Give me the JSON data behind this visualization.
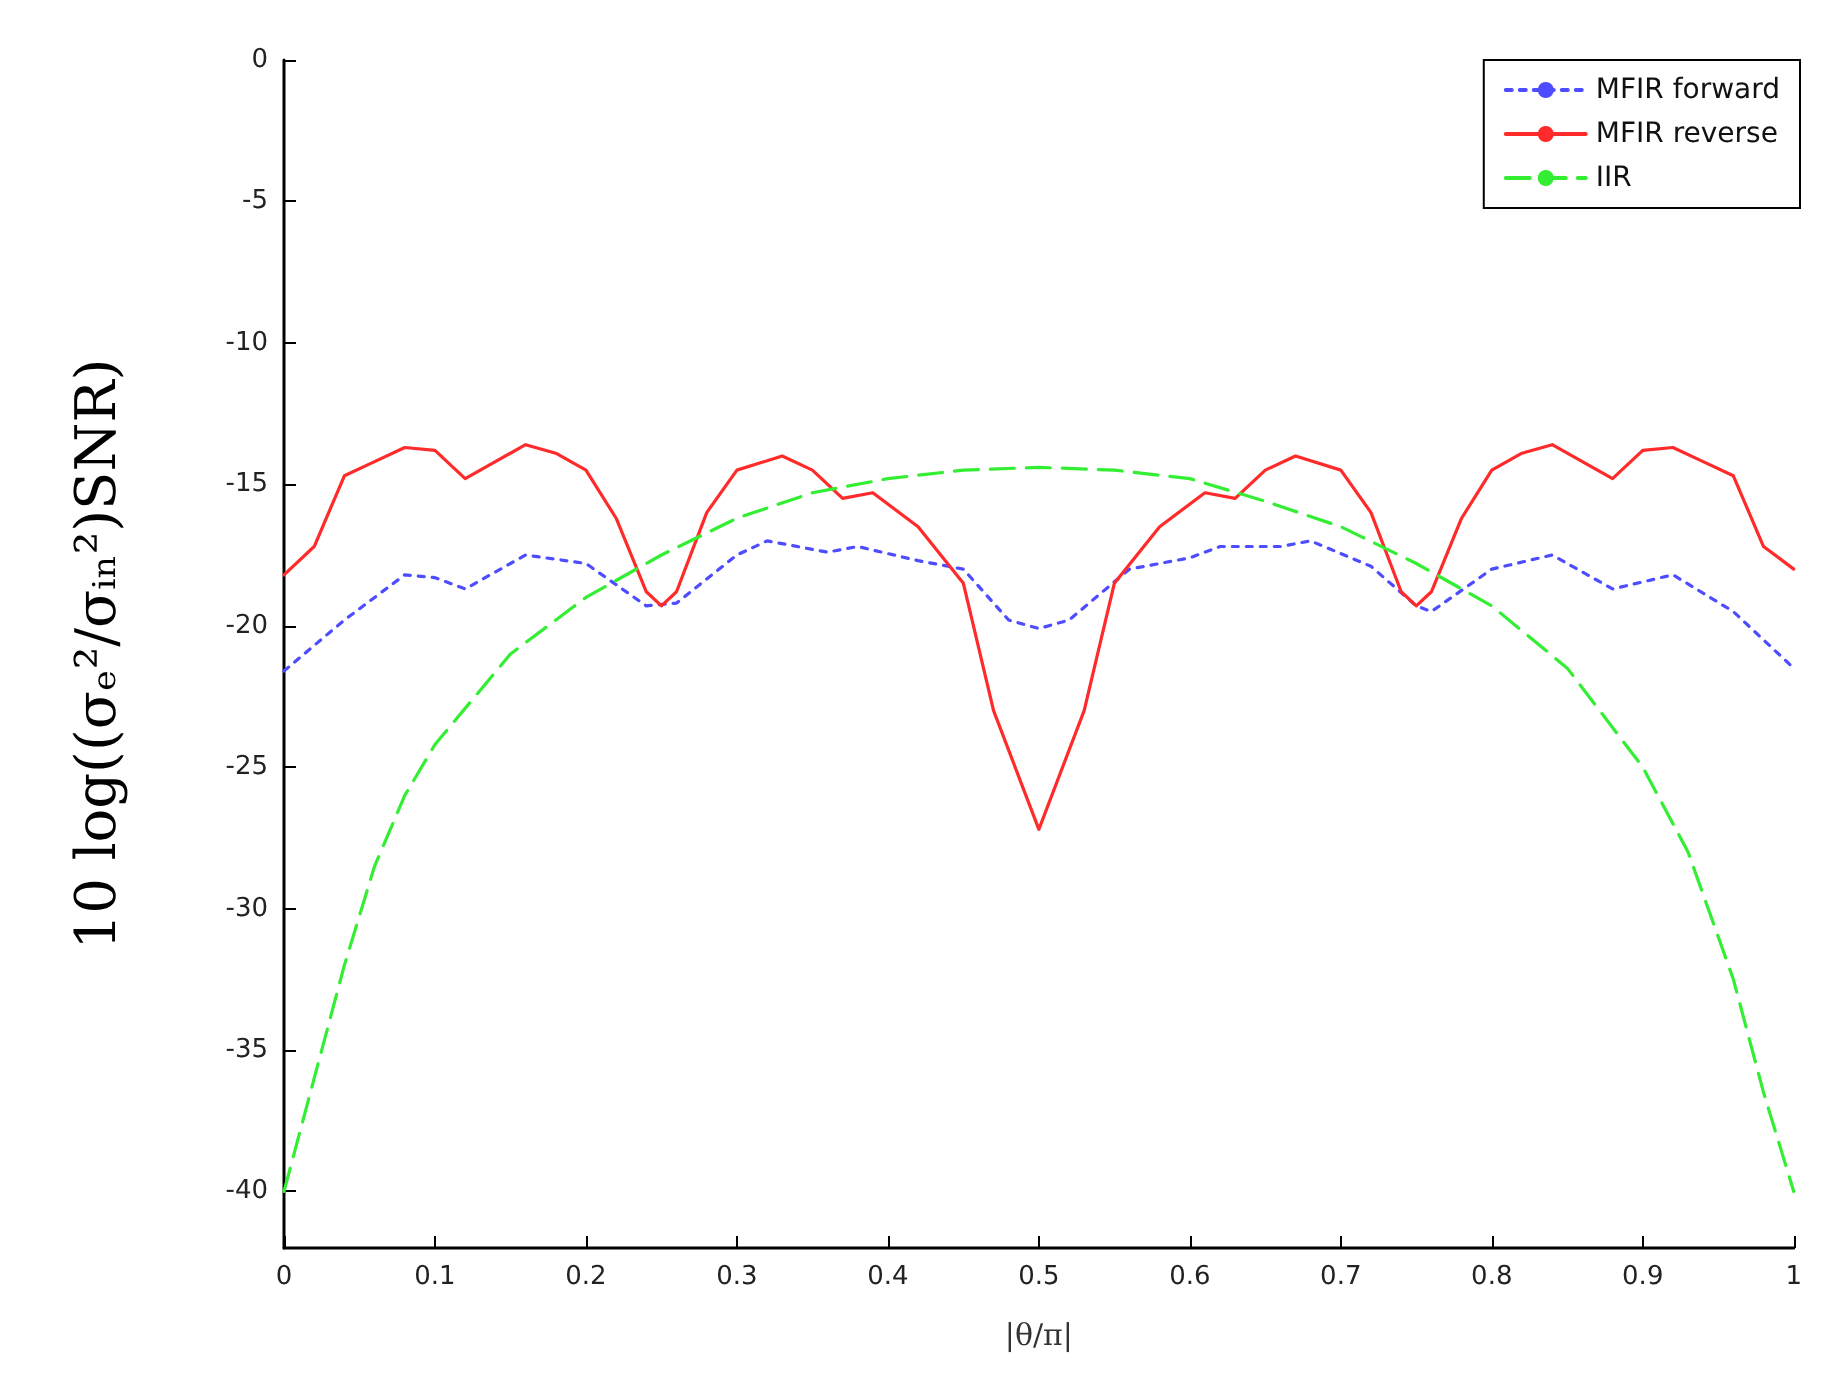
{
  "chart_data": {
    "type": "line",
    "xlabel": "|θ/π|",
    "ylabel": "10 log((σₑ²/σᵢₙ²)SNR)",
    "xlim": [
      0,
      1
    ],
    "xticks": [
      0,
      0.1,
      0.2,
      0.3,
      0.4,
      0.5,
      0.6,
      0.7,
      0.8,
      0.9,
      1
    ],
    "ylim": [
      -42,
      0
    ],
    "yticks": [
      -40,
      -35,
      -30,
      -25,
      -20,
      -15,
      -10,
      -5,
      0
    ],
    "legend": "top right",
    "series": [
      {
        "name": "MFIR forward",
        "color": "#4d4dff",
        "line_style": "dotted",
        "x": [
          0,
          0.04,
          0.08,
          0.1,
          0.12,
          0.16,
          0.2,
          0.24,
          0.26,
          0.3,
          0.32,
          0.36,
          0.38,
          0.42,
          0.45,
          0.48,
          0.5,
          0.52,
          0.56,
          0.6,
          0.62,
          0.66,
          0.68,
          0.72,
          0.75,
          0.76,
          0.8,
          0.84,
          0.88,
          0.92,
          0.96,
          1
        ],
        "values": [
          -21.6,
          -19.8,
          -18.2,
          -18.3,
          -18.7,
          -17.5,
          -17.8,
          -19.3,
          -19.2,
          -17.5,
          -17,
          -17.4,
          -17.2,
          -17.7,
          -18,
          -19.8,
          -20.1,
          -19.8,
          -18,
          -17.6,
          -17.2,
          -17.2,
          -17,
          -17.9,
          -19.3,
          -19.5,
          -18,
          -17.5,
          -18.7,
          -18.2,
          -19.5,
          -21.5
        ]
      },
      {
        "name": "MFIR reverse",
        "color": "#ff2a2a",
        "line_style": "solid",
        "x": [
          0,
          0.02,
          0.04,
          0.06,
          0.08,
          0.1,
          0.12,
          0.14,
          0.16,
          0.18,
          0.2,
          0.22,
          0.24,
          0.25,
          0.26,
          0.28,
          0.3,
          0.33,
          0.35,
          0.37,
          0.39,
          0.42,
          0.45,
          0.47,
          0.5,
          0.53,
          0.55,
          0.58,
          0.61,
          0.63,
          0.65,
          0.67,
          0.7,
          0.72,
          0.74,
          0.75,
          0.76,
          0.78,
          0.8,
          0.82,
          0.84,
          0.86,
          0.88,
          0.9,
          0.92,
          0.94,
          0.96,
          0.98,
          1
        ],
        "values": [
          -18.2,
          -17.2,
          -14.7,
          -14.2,
          -13.7,
          -13.8,
          -14.8,
          -14.2,
          -13.6,
          -13.9,
          -14.5,
          -16.2,
          -18.8,
          -19.3,
          -18.8,
          -16,
          -14.5,
          -14,
          -14.5,
          -15.5,
          -15.3,
          -16.5,
          -18.5,
          -23,
          -27.2,
          -23,
          -18.5,
          -16.5,
          -15.3,
          -15.5,
          -14.5,
          -14,
          -14.5,
          -16,
          -18.8,
          -19.3,
          -18.8,
          -16.2,
          -14.5,
          -13.9,
          -13.6,
          -14.2,
          -14.8,
          -13.8,
          -13.7,
          -14.2,
          -14.7,
          -17.2,
          -18
        ]
      },
      {
        "name": "IIR",
        "color": "#33ee33",
        "line_style": "dashed",
        "x": [
          0,
          0.02,
          0.04,
          0.06,
          0.08,
          0.1,
          0.15,
          0.2,
          0.25,
          0.3,
          0.35,
          0.4,
          0.45,
          0.5,
          0.55,
          0.6,
          0.65,
          0.7,
          0.75,
          0.8,
          0.85,
          0.9,
          0.93,
          0.96,
          0.98,
          1
        ],
        "values": [
          -40,
          -36,
          -32,
          -28.5,
          -26,
          -24.2,
          -21,
          -19,
          -17.5,
          -16.2,
          -15.3,
          -14.8,
          -14.5,
          -14.4,
          -14.5,
          -14.8,
          -15.6,
          -16.5,
          -17.8,
          -19.3,
          -21.5,
          -25,
          -28,
          -32.5,
          -36.5,
          -40
        ]
      }
    ]
  }
}
